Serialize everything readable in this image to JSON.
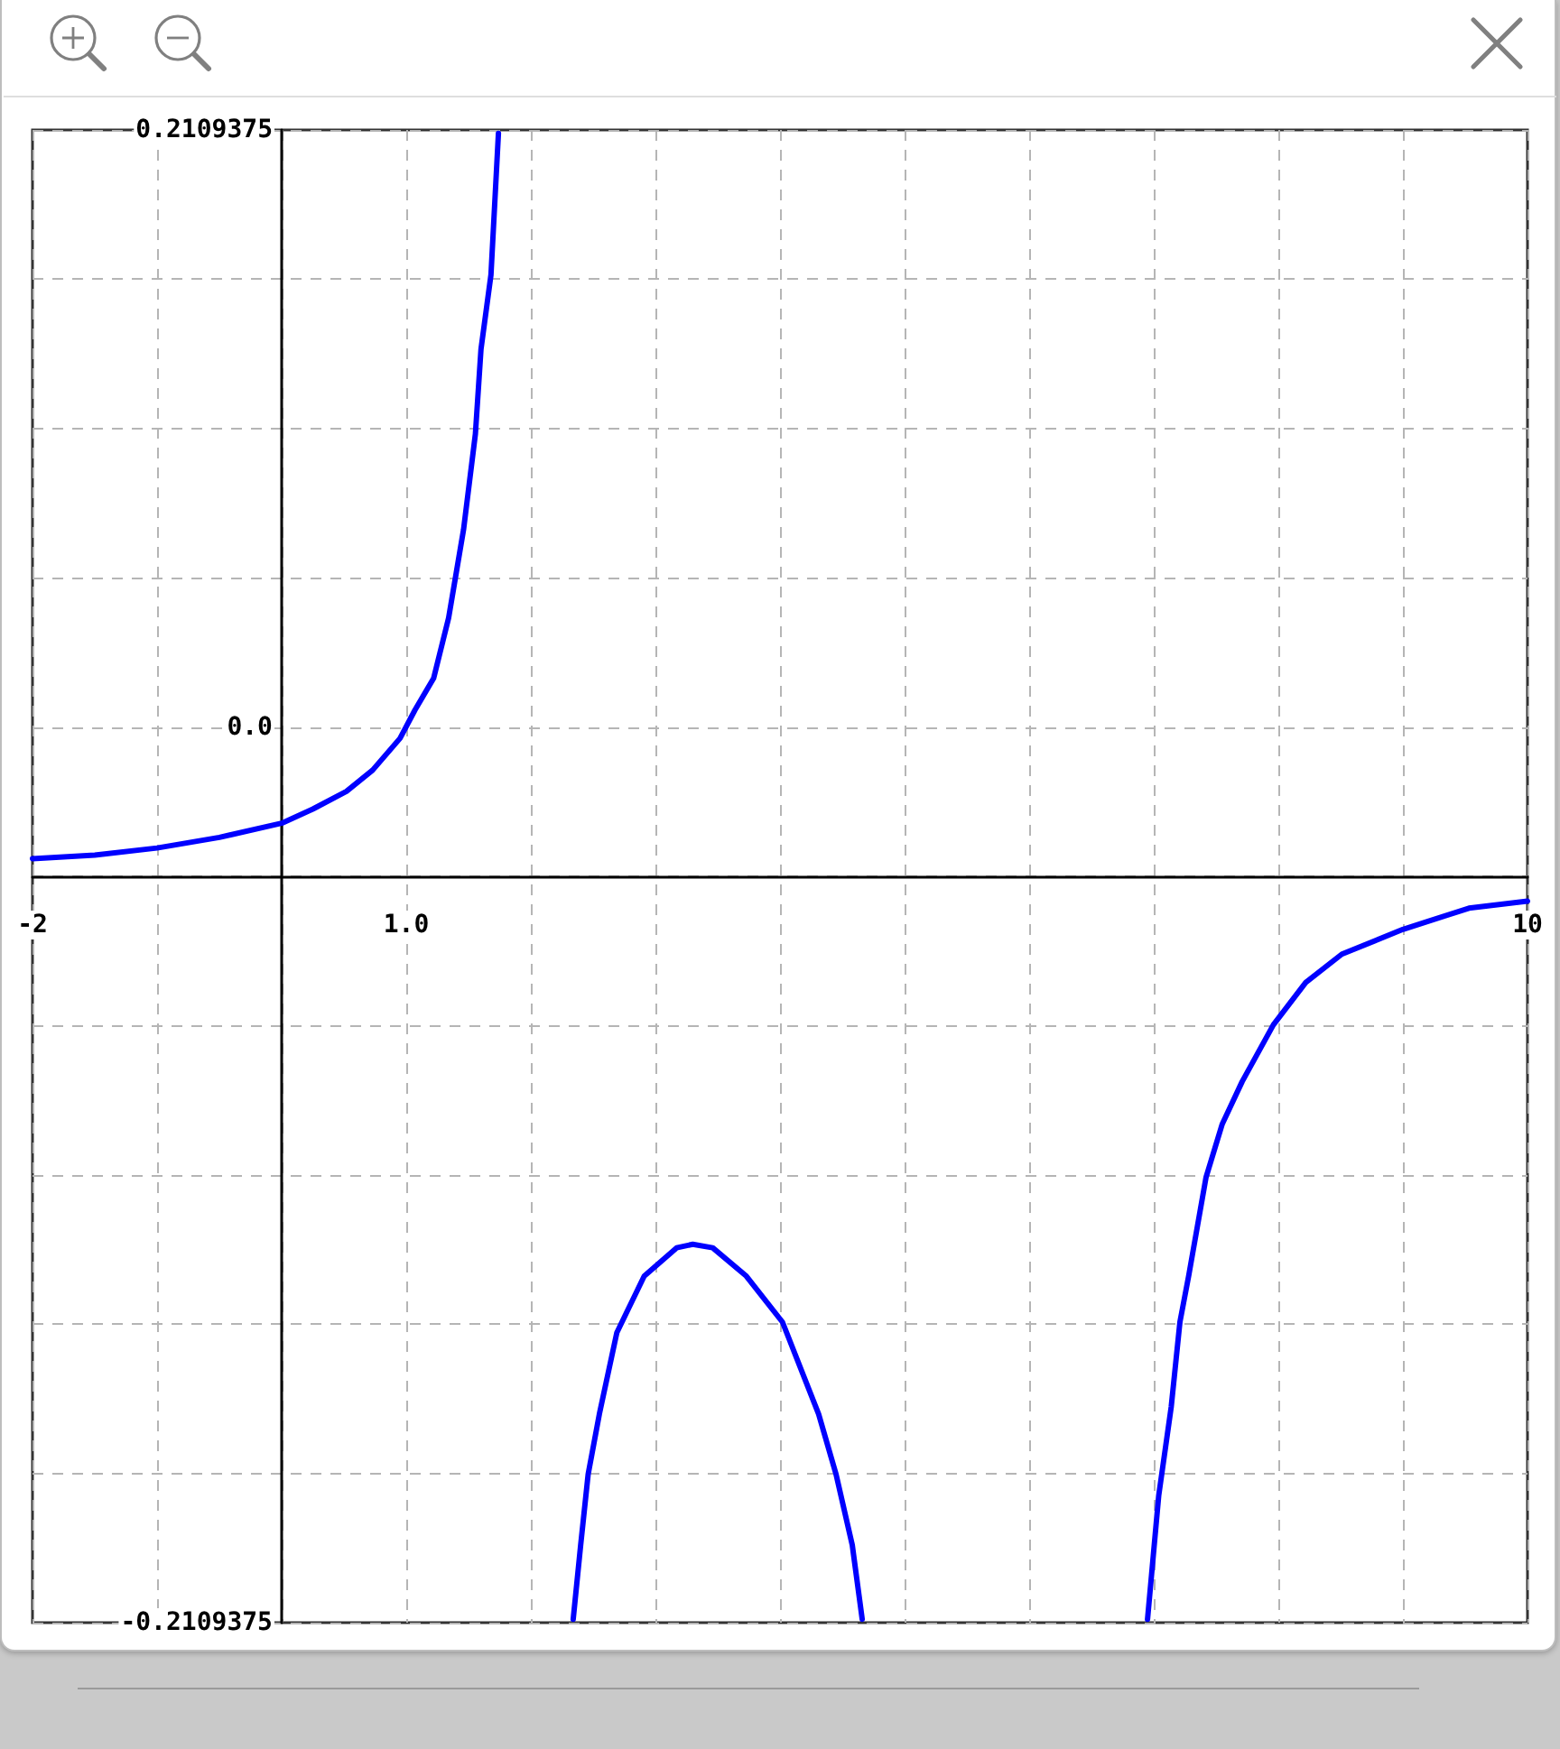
{
  "chart_data": {
    "type": "line",
    "x": [
      -2,
      -1.5,
      -1,
      -0.5,
      0,
      0.25,
      0.52,
      0.73,
      0.95,
      1.07,
      1.22,
      1.34,
      1.46,
      1.555,
      1.6,
      1.68,
      1.74,
      2.0,
      2.34,
      2.4,
      2.46,
      2.55,
      2.69,
      2.91,
      3.17,
      3.3,
      3.46,
      3.73,
      4.02,
      4.31,
      4.45,
      4.58,
      4.66,
      5.8,
      6.95,
      7.04,
      7.14,
      7.21,
      7.28,
      7.42,
      7.55,
      7.71,
      7.96,
      8.22,
      8.51,
      9.0,
      9.53,
      10
    ],
    "values": [
      0.005,
      0.006,
      0.008,
      0.011,
      0.015,
      0.019,
      0.024,
      0.03,
      0.039,
      0.047,
      0.056,
      0.073,
      0.098,
      0.125,
      0.149,
      0.17,
      0.21,
      null,
      -0.21,
      -0.189,
      -0.169,
      -0.152,
      -0.129,
      -0.113,
      -0.105,
      -0.104,
      -0.105,
      -0.113,
      -0.126,
      -0.152,
      -0.169,
      -0.189,
      -0.21,
      null,
      -0.21,
      -0.175,
      -0.15,
      -0.126,
      -0.113,
      -0.085,
      -0.07,
      -0.058,
      -0.042,
      -0.03,
      -0.022,
      -0.015,
      -0.009,
      -0.007
    ],
    "color": "#0000ff",
    "xlim": [
      -2,
      10
    ],
    "xticks": [
      -2,
      {
        "value": -1,
        "label": null
      },
      {
        "value": 0,
        "label": null
      },
      {
        "value": 1,
        "label": "1.0"
      },
      {
        "value": 2,
        "label": null
      },
      {
        "value": 3,
        "label": null
      },
      {
        "value": 4,
        "label": null
      },
      {
        "value": 5,
        "label": null
      },
      {
        "value": 6,
        "label": null
      },
      {
        "value": 7,
        "label": null
      },
      {
        "value": 8,
        "label": null
      },
      {
        "value": 9,
        "label": null
      },
      10
    ],
    "ylim": [
      -0.2109375,
      0.2109375
    ],
    "yticks": [
      -0.2109375,
      {
        "value": -0.16875,
        "label": null
      },
      {
        "value": -0.1265625,
        "label": null
      },
      {
        "value": -0.084375,
        "label": null
      },
      {
        "value": -0.0421875,
        "label": null
      },
      {
        "value": 0,
        "label": null
      },
      {
        "value": 0.0421875,
        "label": "0.0"
      },
      {
        "value": 0.084375,
        "label": null
      },
      {
        "value": 0.1265625,
        "label": null
      },
      {
        "value": 0.16875,
        "label": null
      },
      0.2109375
    ],
    "grid": true
  }
}
